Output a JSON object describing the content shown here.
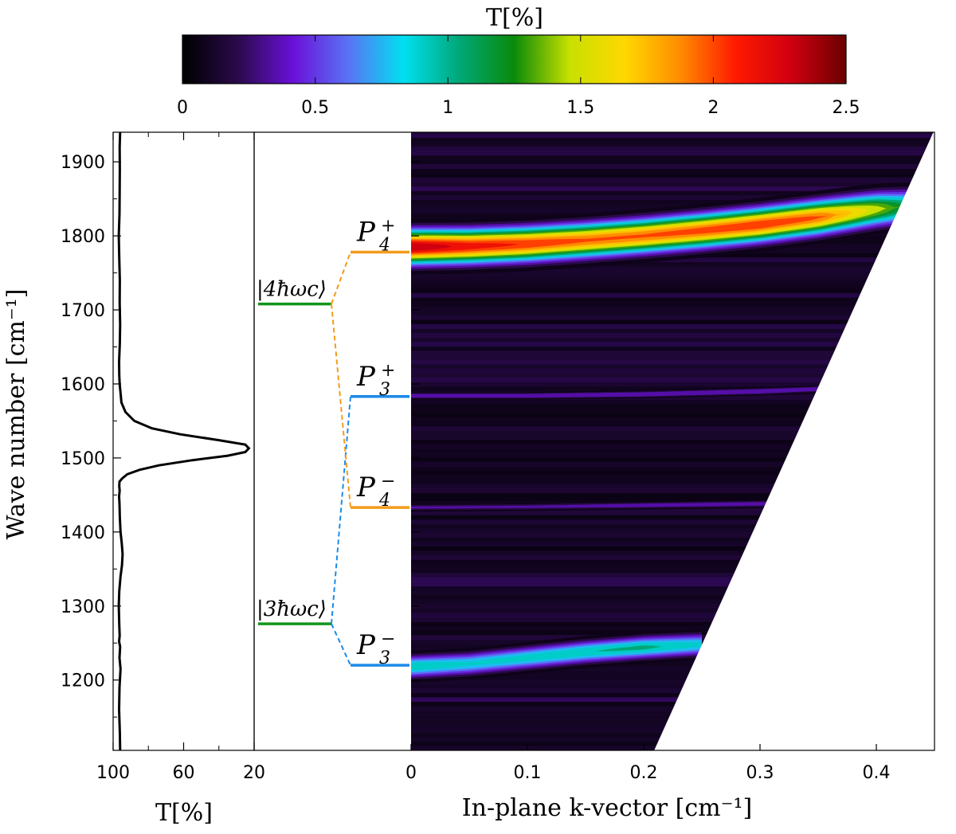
{
  "chart_data": [
    {
      "type": "line",
      "panel": "transmission-spectrum",
      "xlabel": "T[%]",
      "ylabel": "Wave number [cm⁻¹]",
      "x_ticks": [
        "100",
        "60",
        "20"
      ],
      "y_ticks": [
        "1200",
        "1300",
        "1400",
        "1500",
        "1600",
        "1700",
        "1800",
        "1900"
      ],
      "xlim": [
        100,
        20
      ],
      "ylim": [
        1105,
        1940
      ],
      "x_reversed": true,
      "series": [
        {
          "x": [
            96,
            96.2,
            96.6,
            96.4,
            95.8,
            96.4,
            96,
            96.6,
            96.3,
            96.5,
            96.8,
            96.5,
            95.8,
            95,
            94.6,
            95.1,
            95.8,
            96.2,
            96.4,
            96.6,
            96.3,
            96.5,
            96.4,
            95,
            92,
            85,
            74,
            55,
            35,
            25,
            23,
            25,
            40,
            62,
            78,
            88,
            93,
            95.3,
            95.8,
            96.3,
            96.5,
            96.6,
            96.2,
            96,
            96.3,
            96.2,
            96.5,
            96.8,
            96.4,
            96.3,
            96.2,
            96.3,
            96
          ],
          "y": [
            1105,
            1130,
            1160,
            1190,
            1215,
            1230,
            1245,
            1252,
            1260,
            1275,
            1300,
            1320,
            1340,
            1355,
            1370,
            1385,
            1400,
            1420,
            1438,
            1448,
            1456,
            1462,
            1468,
            1472,
            1478,
            1484,
            1490,
            1497,
            1503,
            1508,
            1513,
            1518,
            1524,
            1532,
            1540,
            1550,
            1562,
            1575,
            1588,
            1600,
            1612,
            1630,
            1655,
            1680,
            1710,
            1740,
            1770,
            1800,
            1830,
            1860,
            1890,
            1920,
            1940
          ]
        }
      ]
    },
    {
      "type": "diagram",
      "panel": "energy-levels",
      "bare_levels": [
        {
          "label": "|4ħωc⟩",
          "y": 1708,
          "color": "#11951c"
        },
        {
          "label": "|3ħωc⟩",
          "y": 1276,
          "color": "#11951c"
        }
      ],
      "polariton_levels": [
        {
          "label": "P4+",
          "y": 1778,
          "color": "#f39b1a",
          "parent": 1708
        },
        {
          "label": "P3+",
          "y": 1583,
          "color": "#1a8be8",
          "parent": 1276
        },
        {
          "label": "P4−",
          "y": 1433,
          "color": "#f39b1a",
          "parent": 1708
        },
        {
          "label": "P3−",
          "y": 1220,
          "color": "#1a8be8",
          "parent": 1276
        }
      ]
    },
    {
      "type": "heatmap",
      "panel": "dispersion-map",
      "xlabel": "In-plane k-vector [cm⁻¹]",
      "x_ticks": [
        "0",
        "0.1",
        "0.2",
        "0.3",
        "0.4"
      ],
      "xlim": [
        0,
        0.45
      ],
      "ylim": [
        1105,
        1940
      ],
      "mask_boundary": [
        [
          0.209,
          1105
        ],
        [
          0.449,
          1940
        ]
      ],
      "branches": [
        {
          "name": "P4+",
          "k": [
            0,
            0.05,
            0.1,
            0.15,
            0.2,
            0.25,
            0.3,
            0.35,
            0.4,
            0.43
          ],
          "wn": [
            1785,
            1786,
            1789,
            1794,
            1800,
            1807,
            1815,
            1825,
            1836,
            1840
          ],
          "width": 22,
          "peak": [
            2.5,
            2.3,
            2.2,
            2.1,
            2.1,
            2.15,
            2.2,
            2.1,
            1.6,
            1.2
          ]
        },
        {
          "name": "P3+",
          "k": [
            0,
            0.1,
            0.2,
            0.3,
            0.35
          ],
          "wn": [
            1584,
            1584,
            1586,
            1590,
            1593
          ],
          "width": 4.5,
          "peak": [
            0.55,
            0.55,
            0.6,
            0.62,
            0.55
          ]
        },
        {
          "name": "P4−",
          "k": [
            0,
            0.1,
            0.2,
            0.3,
            0.32
          ],
          "wn": [
            1433,
            1434,
            1436,
            1438,
            1439
          ],
          "width": 5,
          "peak": [
            0.45,
            0.45,
            0.5,
            0.52,
            0.45
          ]
        },
        {
          "name": "P3−",
          "k": [
            0,
            0.05,
            0.1,
            0.15,
            0.2,
            0.25
          ],
          "wn": [
            1218,
            1222,
            1230,
            1238,
            1244,
            1248
          ],
          "width": 15,
          "peak": [
            1.1,
            1.0,
            1.05,
            1.1,
            1.15,
            1.0
          ]
        }
      ]
    },
    {
      "type": "colorbar",
      "title": "T[%]",
      "ticks": [
        "0",
        "0.5",
        "1",
        "1.5",
        "2",
        "2.5"
      ],
      "range": [
        0,
        2.5
      ],
      "colors": [
        "#000000",
        "#2a0a4a",
        "#6a10d8",
        "#5a73f5",
        "#00e0f0",
        "#00a878",
        "#0a8a0a",
        "#c8e000",
        "#ffd800",
        "#ff8c00",
        "#ff1a00",
        "#d00010",
        "#6a0000"
      ]
    }
  ]
}
